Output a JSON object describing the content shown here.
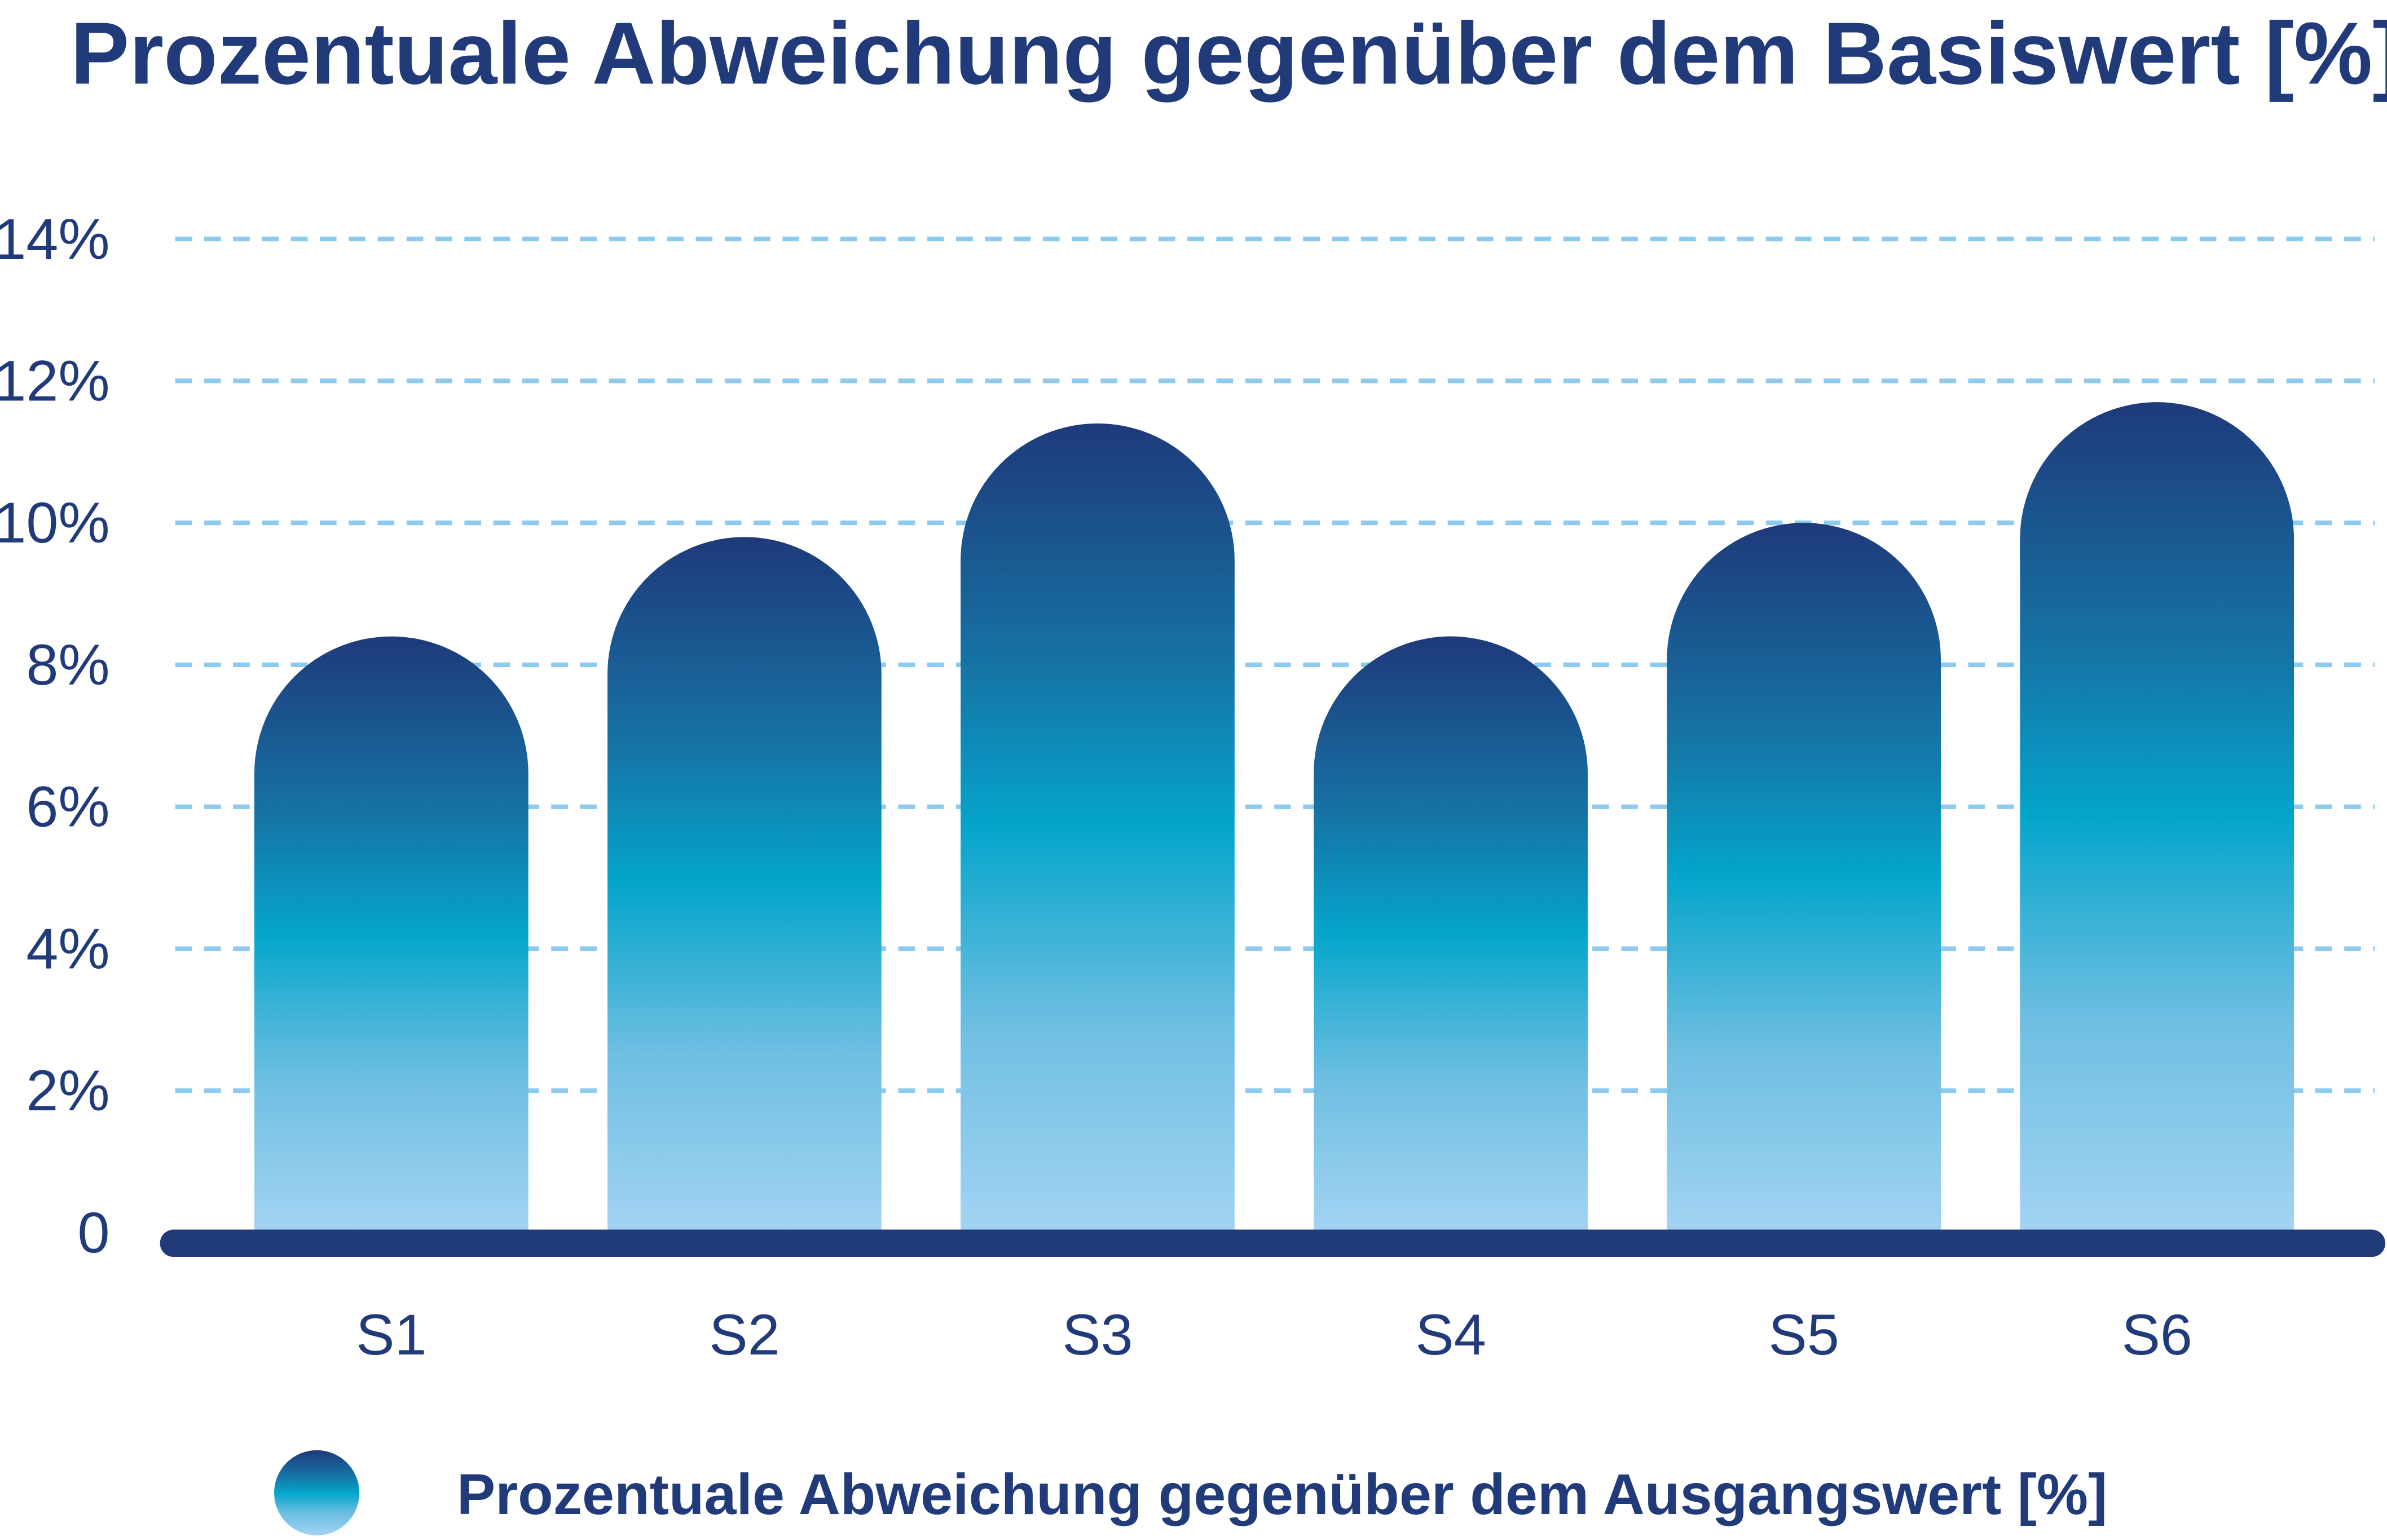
{
  "chart_data": {
    "type": "bar",
    "title": "Prozentuale Abweichung gegenüber dem Basiswert [%]",
    "xlabel": "",
    "ylabel": "",
    "categories": [
      "S1",
      "S2",
      "S3",
      "S4",
      "S5",
      "S6"
    ],
    "series": [
      {
        "name": "Prozentuale Abweichung gegenüber dem Ausgangswert [%]",
        "values": [
          8.4,
          9.8,
          11.4,
          8.4,
          10.0,
          11.7
        ]
      }
    ],
    "ylim": [
      0,
      14
    ],
    "yticks": [
      0,
      2,
      4,
      6,
      8,
      10,
      12,
      14
    ],
    "ytick_labels": [
      "0",
      "2%",
      "4%",
      "6%",
      "8%",
      "10%",
      "12%",
      "14%"
    ],
    "grid": true,
    "legend_position": "bottom-left",
    "colors": {
      "text": "#213a7a",
      "grid": "#8ccbef",
      "axis": "#213a7a",
      "gradient_top": "#1e3a7a",
      "gradient_mid_dark": "#1673a5",
      "gradient_mid": "#04a5cb",
      "gradient_bottom": "#a2d3f2"
    }
  }
}
